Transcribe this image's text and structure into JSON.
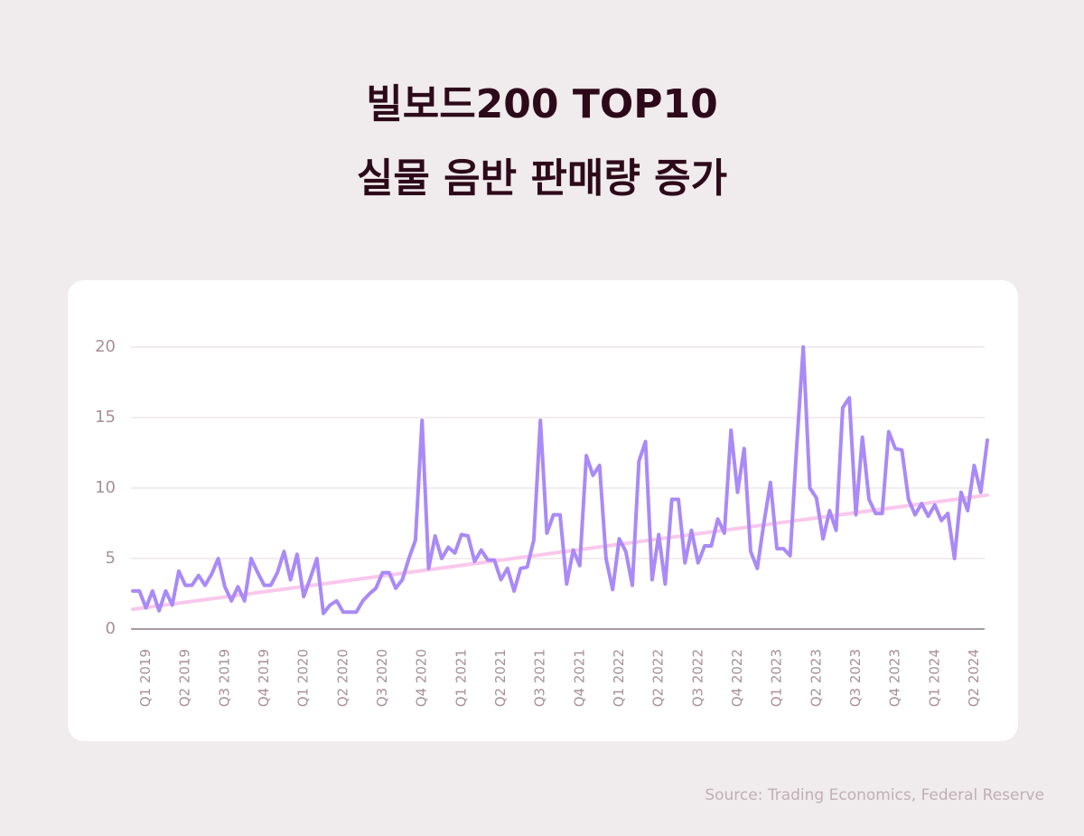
{
  "chart_data": {
    "type": "line",
    "title": [
      "빌보드200 TOP10",
      "실물 음반 판매량 증가"
    ],
    "source": "Source: Trading Economics, Federal Reserve",
    "categories": [
      null,
      null,
      "Q1 2019",
      null,
      null,
      null,
      null,
      null,
      "Q2 2019",
      null,
      null,
      null,
      null,
      null,
      "Q3 2019",
      null,
      null,
      null,
      null,
      null,
      "Q4 2019",
      null,
      null,
      null,
      null,
      null,
      "Q1 2020",
      null,
      null,
      null,
      null,
      null,
      "Q2 2020",
      null,
      null,
      null,
      null,
      null,
      "Q3 2020",
      null,
      null,
      null,
      null,
      null,
      "Q4 2020",
      null,
      null,
      null,
      null,
      null,
      "Q1 2021",
      null,
      null,
      null,
      null,
      null,
      "Q2 2021",
      null,
      null,
      null,
      null,
      null,
      "Q3 2021",
      null,
      null,
      null,
      null,
      null,
      "Q4 2021",
      null,
      null,
      null,
      null,
      null,
      "Q1 2022",
      null,
      null,
      null,
      null,
      null,
      "Q2 2022",
      null,
      null,
      null,
      null,
      null,
      "Q3 2022",
      null,
      null,
      null,
      null,
      null,
      "Q4 2022",
      null,
      null,
      null,
      null,
      null,
      "Q1 2023",
      null,
      null,
      null,
      null,
      null,
      "Q2 2023",
      null,
      null,
      null,
      null,
      null,
      "Q3 2023",
      null,
      null,
      null,
      null,
      null,
      "Q4 2023",
      null,
      null,
      null,
      null,
      null,
      "Q1 2024",
      null,
      null,
      null,
      null,
      null,
      "Q2 2024",
      null,
      null
    ],
    "series": [
      {
        "color": "#a98af7",
        "values": [
          2.7,
          2.7,
          1.5,
          2.7,
          1.3,
          2.7,
          1.7,
          4.1,
          3.1,
          3.1,
          3.8,
          3.1,
          3.9,
          5.0,
          3.0,
          2.0,
          3.0,
          2.0,
          5.0,
          4.0,
          3.1,
          3.1,
          4.0,
          5.5,
          3.5,
          5.3,
          2.3,
          3.6,
          5.0,
          1.1,
          1.7,
          2.0,
          1.2,
          1.2,
          1.2,
          2.0,
          2.5,
          2.9,
          4.0,
          4.0,
          2.9,
          3.5,
          5.0,
          6.3,
          14.8,
          4.3,
          6.6,
          5.0,
          5.8,
          5.4,
          6.7,
          6.6,
          4.8,
          5.6,
          4.9,
          4.9,
          3.5,
          4.3,
          2.7,
          4.3,
          4.4,
          6.3,
          14.8,
          6.8,
          8.1,
          8.1,
          3.2,
          5.6,
          4.5,
          12.3,
          10.9,
          11.6,
          5.0,
          2.8,
          6.4,
          5.5,
          3.1,
          11.9,
          13.3,
          3.5,
          6.7,
          3.2,
          9.2,
          9.2,
          4.7,
          7.0,
          4.7,
          5.9,
          5.9,
          7.8,
          6.8,
          14.1,
          9.7,
          12.8,
          5.5,
          4.3,
          7.5,
          10.4,
          5.7,
          5.7,
          5.2,
          13,
          20.0,
          10.0,
          9.3,
          6.4,
          8.4,
          7.0,
          15.7,
          16.4,
          8.1,
          13.6,
          9.2,
          8.2,
          8.2,
          14.0,
          12.8,
          12.7,
          9.2,
          8.1,
          8.9,
          8.0,
          8.8,
          7.7,
          8.2,
          5.0,
          9.7,
          8.4,
          11.6,
          9.7,
          13.4
        ]
      }
    ],
    "trendline": {
      "start": 1.4,
      "end": 9.5,
      "color": "#f9c8ec"
    },
    "ylim": [
      0,
      20
    ],
    "yticks": [
      0,
      5,
      10,
      15,
      20
    ],
    "grid": true
  }
}
